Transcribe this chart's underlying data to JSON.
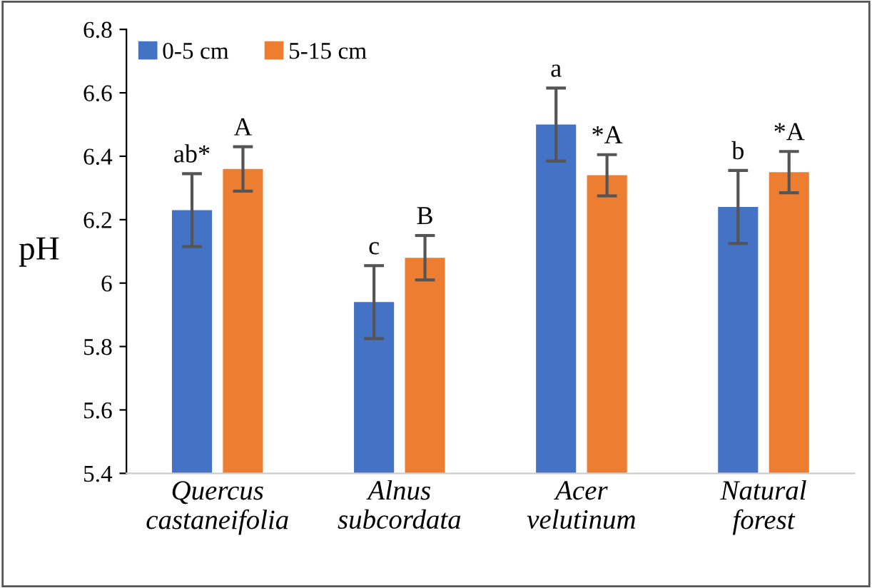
{
  "chart_data": {
    "type": "bar",
    "ylabel": "pH",
    "categories": [
      "Quercus\ncastaneifolia",
      "Alnus\nsubcordata",
      "Acer\nvelutinum",
      "Natural\nforest"
    ],
    "series": [
      {
        "name": "0-5 cm",
        "color": "#4472c4",
        "values": [
          6.23,
          5.94,
          6.5,
          6.24
        ],
        "errors": [
          0.115,
          0.115,
          0.115,
          0.115
        ]
      },
      {
        "name": "5-15 cm",
        "color": "#ed7d31",
        "values": [
          6.36,
          6.08,
          6.34,
          6.35
        ],
        "errors": [
          0.07,
          0.07,
          0.065,
          0.065
        ]
      }
    ],
    "ylim": [
      5.4,
      6.8
    ],
    "yticks": [
      5.4,
      5.6,
      5.8,
      6,
      6.2,
      6.4,
      6.6,
      6.8
    ],
    "legend": "top left",
    "grid": false,
    "annotations": [
      "ab*",
      "A",
      "c",
      "B",
      "a",
      "*A",
      "b",
      "*A"
    ]
  }
}
